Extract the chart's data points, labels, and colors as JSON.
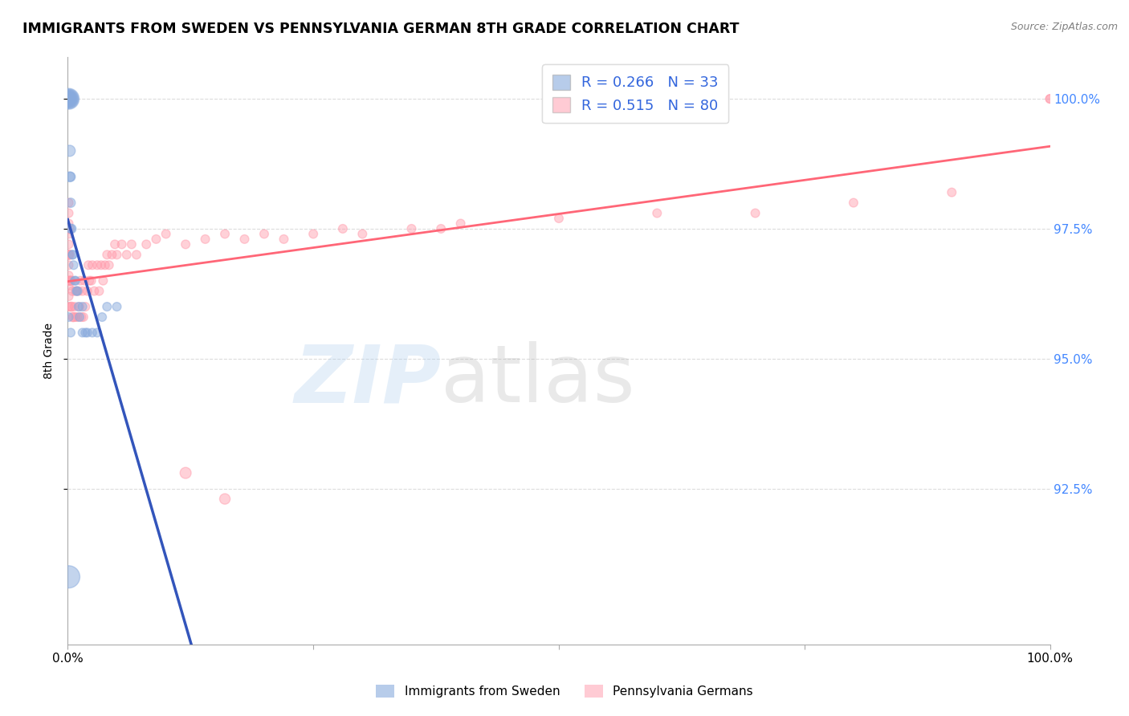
{
  "title": "IMMIGRANTS FROM SWEDEN VS PENNSYLVANIA GERMAN 8TH GRADE CORRELATION CHART",
  "source_text": "Source: ZipAtlas.com",
  "ylabel": "8th Grade",
  "xlim": [
    0.0,
    1.0
  ],
  "ylim": [
    0.895,
    1.008
  ],
  "yticks": [
    0.925,
    0.95,
    0.975,
    1.0
  ],
  "ytick_labels": [
    "92.5%",
    "95.0%",
    "97.5%",
    "100.0%"
  ],
  "xtick_vals": [
    0.0,
    0.25,
    0.5,
    0.75,
    1.0
  ],
  "xtick_labels": [
    "0.0%",
    "",
    "",
    "",
    "100.0%"
  ],
  "blue_color": "#88AADD",
  "pink_color": "#FF99AA",
  "blue_line_color": "#3355BB",
  "pink_line_color": "#FF6677",
  "legend_R_blue": "0.266",
  "legend_N_blue": "33",
  "legend_R_pink": "0.515",
  "legend_N_pink": "80",
  "legend_label_blue": "Immigrants from Sweden",
  "legend_label_pink": "Pennsylvania Germans",
  "watermark_text": "ZIPatlas",
  "background_color": "#FFFFFF",
  "grid_color": "#CCCCCC",
  "blue_x": [
    0.001,
    0.001,
    0.001,
    0.001,
    0.001,
    0.001,
    0.002,
    0.002,
    0.003,
    0.003,
    0.003,
    0.004,
    0.005,
    0.005,
    0.006,
    0.007,
    0.008,
    0.009,
    0.01,
    0.011,
    0.012,
    0.015,
    0.015,
    0.018,
    0.02,
    0.025,
    0.03,
    0.035,
    0.04,
    0.05,
    0.001,
    0.003,
    0.001
  ],
  "blue_y": [
    1.0,
    1.0,
    1.0,
    1.0,
    1.0,
    1.0,
    0.99,
    0.985,
    0.985,
    0.98,
    0.975,
    0.975,
    0.97,
    0.97,
    0.968,
    0.965,
    0.965,
    0.963,
    0.963,
    0.96,
    0.958,
    0.96,
    0.955,
    0.955,
    0.955,
    0.955,
    0.955,
    0.958,
    0.96,
    0.96,
    0.958,
    0.955,
    0.908
  ],
  "blue_sizes": [
    350,
    300,
    260,
    220,
    180,
    140,
    100,
    80,
    70,
    70,
    65,
    65,
    60,
    60,
    60,
    60,
    60,
    60,
    60,
    60,
    60,
    60,
    60,
    60,
    60,
    60,
    60,
    60,
    60,
    60,
    60,
    60,
    400
  ],
  "pink_x": [
    0.001,
    0.001,
    0.001,
    0.002,
    0.002,
    0.003,
    0.003,
    0.004,
    0.004,
    0.005,
    0.005,
    0.006,
    0.007,
    0.008,
    0.008,
    0.009,
    0.01,
    0.011,
    0.012,
    0.013,
    0.014,
    0.015,
    0.016,
    0.017,
    0.018,
    0.02,
    0.021,
    0.022,
    0.024,
    0.025,
    0.027,
    0.03,
    0.032,
    0.034,
    0.036,
    0.038,
    0.04,
    0.042,
    0.045,
    0.048,
    0.05,
    0.055,
    0.06,
    0.065,
    0.07,
    0.08,
    0.09,
    0.1,
    0.12,
    0.14,
    0.16,
    0.18,
    0.2,
    0.22,
    0.25,
    0.28,
    0.3,
    0.35,
    0.38,
    0.4,
    0.5,
    0.6,
    0.7,
    0.8,
    0.9,
    1.0,
    1.0,
    0.12,
    0.16,
    0.001,
    0.001,
    0.001,
    0.001,
    0.001,
    0.001,
    0.001,
    0.001,
    0.001,
    0.001,
    0.001
  ],
  "pink_y": [
    0.975,
    0.97,
    0.965,
    0.97,
    0.965,
    0.965,
    0.96,
    0.965,
    0.96,
    0.963,
    0.958,
    0.958,
    0.96,
    0.963,
    0.958,
    0.963,
    0.958,
    0.963,
    0.96,
    0.965,
    0.958,
    0.963,
    0.958,
    0.965,
    0.96,
    0.963,
    0.968,
    0.965,
    0.965,
    0.968,
    0.963,
    0.968,
    0.963,
    0.968,
    0.965,
    0.968,
    0.97,
    0.968,
    0.97,
    0.972,
    0.97,
    0.972,
    0.97,
    0.972,
    0.97,
    0.972,
    0.973,
    0.974,
    0.972,
    0.973,
    0.974,
    0.973,
    0.974,
    0.973,
    0.974,
    0.975,
    0.974,
    0.975,
    0.975,
    0.976,
    0.977,
    0.978,
    0.978,
    0.98,
    0.982,
    1.0,
    1.0,
    0.928,
    0.923,
    0.98,
    0.978,
    0.976,
    0.974,
    0.972,
    0.97,
    0.968,
    0.966,
    0.964,
    0.962,
    0.96
  ],
  "pink_sizes": [
    80,
    70,
    65,
    70,
    65,
    65,
    65,
    65,
    65,
    65,
    65,
    65,
    60,
    60,
    60,
    60,
    60,
    60,
    60,
    60,
    60,
    60,
    60,
    60,
    60,
    60,
    60,
    60,
    60,
    60,
    60,
    60,
    60,
    60,
    60,
    60,
    60,
    60,
    60,
    60,
    60,
    60,
    60,
    60,
    60,
    60,
    60,
    60,
    60,
    60,
    60,
    60,
    60,
    60,
    60,
    60,
    60,
    60,
    60,
    60,
    60,
    60,
    60,
    60,
    60,
    60,
    60,
    100,
    90,
    60,
    60,
    60,
    60,
    60,
    60,
    60,
    60,
    60,
    60,
    60
  ]
}
